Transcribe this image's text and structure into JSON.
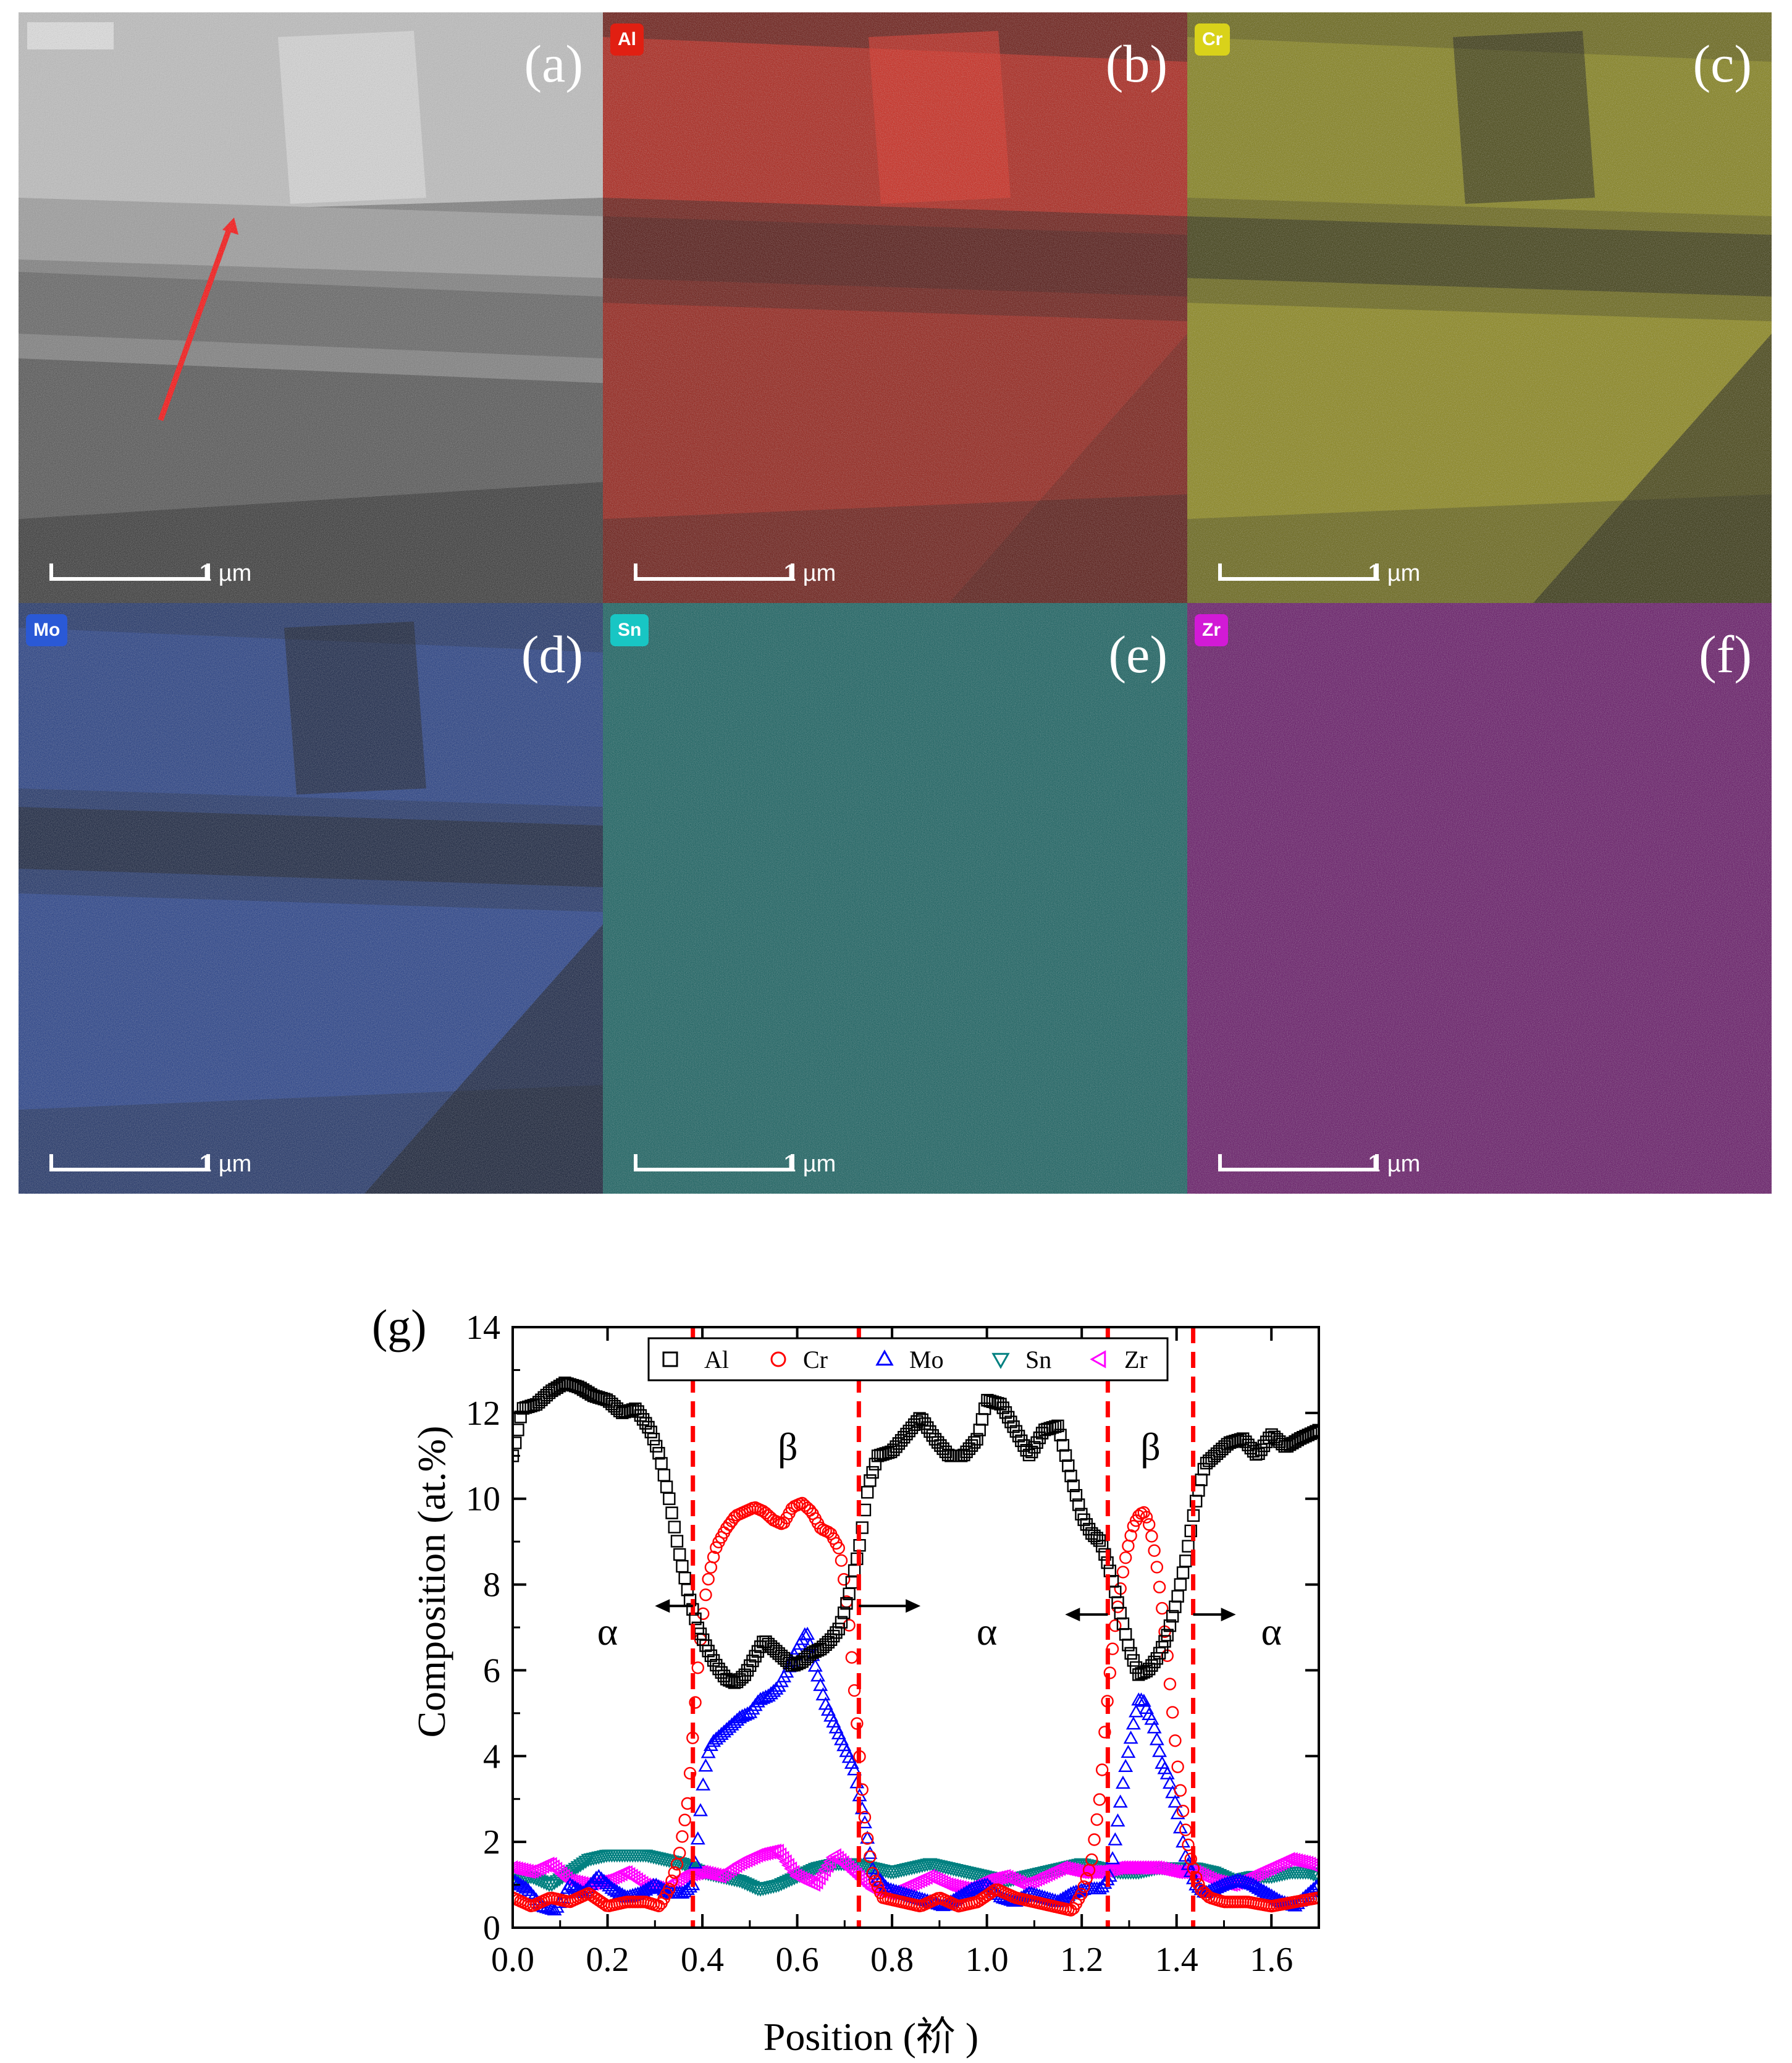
{
  "figure": {
    "panels": [
      {
        "id": "a",
        "label": "(a)",
        "element": "",
        "color": "#8a8a8a",
        "scale": "1 µm",
        "kind": "haadf"
      },
      {
        "id": "b",
        "label": "(b)",
        "element": "Al",
        "color": "#e11f12",
        "scale": "1 µm",
        "kind": "map"
      },
      {
        "id": "c",
        "label": "(c)",
        "element": "Cr",
        "color": "#d9d21a",
        "scale": "1 µm",
        "kind": "map"
      },
      {
        "id": "d",
        "label": "(d)",
        "element": "Mo",
        "color": "#2a59d6",
        "scale": "1 µm",
        "kind": "map"
      },
      {
        "id": "e",
        "label": "(e)",
        "element": "Sn",
        "color": "#18c6c4",
        "scale": "1 µm",
        "kind": "map"
      },
      {
        "id": "f",
        "label": "(f)",
        "element": "Zr",
        "color": "#d21ad6",
        "scale": "1 µm",
        "kind": "map"
      }
    ]
  },
  "chart_data": {
    "type": "line",
    "panel_label": "(g)",
    "xlabel": "Position (祄 )",
    "ylabel": "Composition (at.%)",
    "xlim": [
      0.0,
      1.7
    ],
    "ylim": [
      0,
      14
    ],
    "xticks": [
      "0.0",
      "0.2",
      "0.4",
      "0.6",
      "0.8",
      "1.0",
      "1.2",
      "1.4",
      "1.6"
    ],
    "yticks": [
      "0",
      "2",
      "4",
      "6",
      "8",
      "10",
      "12",
      "14"
    ],
    "legend_position": "top",
    "phase_boundaries_x": [
      0.38,
      0.73,
      1.255,
      1.435
    ],
    "phase_labels": [
      {
        "text": "α",
        "x": 0.2,
        "y": 6.6
      },
      {
        "text": "β",
        "x": 0.58,
        "y": 10.9
      },
      {
        "text": "α",
        "x": 1.0,
        "y": 6.6
      },
      {
        "text": "β",
        "x": 1.345,
        "y": 10.9
      },
      {
        "text": "α",
        "x": 1.6,
        "y": 6.6
      }
    ],
    "arrows": [
      {
        "x_from": 0.38,
        "x_to": 0.3,
        "y": 7.5
      },
      {
        "x_from": 0.73,
        "x_to": 0.86,
        "y": 7.5
      },
      {
        "x_from": 1.255,
        "x_to": 1.165,
        "y": 7.3
      },
      {
        "x_from": 1.435,
        "x_to": 1.525,
        "y": 7.3
      }
    ],
    "series": [
      {
        "name": "Al",
        "color": "#000000",
        "marker": "square",
        "x": [
          0.0,
          0.02,
          0.05,
          0.08,
          0.11,
          0.14,
          0.17,
          0.2,
          0.23,
          0.26,
          0.29,
          0.31,
          0.33,
          0.35,
          0.37,
          0.39,
          0.41,
          0.43,
          0.45,
          0.47,
          0.49,
          0.51,
          0.53,
          0.55,
          0.57,
          0.59,
          0.61,
          0.63,
          0.65,
          0.67,
          0.69,
          0.71,
          0.73,
          0.75,
          0.77,
          0.8,
          0.83,
          0.86,
          0.89,
          0.92,
          0.95,
          0.98,
          1.0,
          1.03,
          1.06,
          1.09,
          1.12,
          1.15,
          1.18,
          1.2,
          1.22,
          1.24,
          1.26,
          1.28,
          1.3,
          1.32,
          1.34,
          1.36,
          1.38,
          1.4,
          1.42,
          1.44,
          1.46,
          1.48,
          1.51,
          1.54,
          1.57,
          1.6,
          1.63,
          1.66,
          1.7
        ],
        "y": [
          11.0,
          12.1,
          12.2,
          12.5,
          12.7,
          12.6,
          12.4,
          12.3,
          12.0,
          12.1,
          11.6,
          11.0,
          10.0,
          8.8,
          7.8,
          7.0,
          6.5,
          6.1,
          5.8,
          5.7,
          5.9,
          6.3,
          6.7,
          6.5,
          6.3,
          6.1,
          6.2,
          6.4,
          6.5,
          6.7,
          7.0,
          7.8,
          8.8,
          10.3,
          11.0,
          11.1,
          11.5,
          11.9,
          11.4,
          11.0,
          11.0,
          11.4,
          12.3,
          12.2,
          11.6,
          11.0,
          11.6,
          11.7,
          10.4,
          9.6,
          9.2,
          9.0,
          8.3,
          7.4,
          6.5,
          5.9,
          6.0,
          6.3,
          6.8,
          7.6,
          8.6,
          9.9,
          10.8,
          11.0,
          11.3,
          11.4,
          11.0,
          11.5,
          11.2,
          11.4,
          11.6
        ]
      },
      {
        "name": "Cr",
        "color": "#ff0000",
        "marker": "circle",
        "x": [
          0.0,
          0.04,
          0.08,
          0.12,
          0.16,
          0.2,
          0.24,
          0.28,
          0.31,
          0.33,
          0.35,
          0.37,
          0.38,
          0.39,
          0.4,
          0.41,
          0.42,
          0.43,
          0.45,
          0.47,
          0.49,
          0.51,
          0.53,
          0.55,
          0.57,
          0.59,
          0.61,
          0.63,
          0.65,
          0.67,
          0.69,
          0.7,
          0.71,
          0.72,
          0.73,
          0.74,
          0.75,
          0.76,
          0.78,
          0.82,
          0.86,
          0.9,
          0.94,
          0.98,
          1.02,
          1.06,
          1.1,
          1.14,
          1.18,
          1.2,
          1.22,
          1.24,
          1.25,
          1.26,
          1.27,
          1.28,
          1.29,
          1.3,
          1.31,
          1.32,
          1.33,
          1.34,
          1.35,
          1.36,
          1.37,
          1.38,
          1.39,
          1.4,
          1.41,
          1.42,
          1.43,
          1.44,
          1.45,
          1.47,
          1.5,
          1.55,
          1.6,
          1.65,
          1.7
        ],
        "y": [
          0.7,
          0.5,
          0.7,
          0.6,
          0.8,
          0.5,
          0.6,
          0.6,
          0.5,
          0.9,
          1.6,
          3.0,
          4.5,
          6.0,
          7.2,
          8.0,
          8.5,
          8.9,
          9.3,
          9.6,
          9.7,
          9.8,
          9.7,
          9.5,
          9.4,
          9.8,
          9.9,
          9.7,
          9.3,
          9.2,
          8.8,
          8.0,
          7.0,
          5.6,
          4.2,
          2.8,
          1.9,
          1.2,
          0.7,
          0.6,
          0.5,
          0.7,
          0.5,
          0.6,
          0.9,
          0.7,
          0.6,
          0.5,
          0.4,
          0.8,
          1.5,
          3.2,
          4.8,
          6.0,
          7.0,
          7.8,
          8.5,
          9.0,
          9.4,
          9.6,
          9.7,
          9.5,
          9.0,
          8.3,
          7.4,
          6.4,
          5.2,
          4.0,
          3.0,
          2.2,
          1.6,
          1.2,
          0.9,
          0.7,
          0.6,
          0.6,
          0.5,
          0.6,
          0.7
        ]
      },
      {
        "name": "Mo",
        "color": "#0000ff",
        "marker": "triangle-up",
        "x": [
          0.0,
          0.03,
          0.06,
          0.09,
          0.12,
          0.15,
          0.18,
          0.21,
          0.24,
          0.27,
          0.3,
          0.33,
          0.36,
          0.38,
          0.39,
          0.4,
          0.41,
          0.42,
          0.44,
          0.46,
          0.48,
          0.5,
          0.52,
          0.54,
          0.56,
          0.58,
          0.6,
          0.62,
          0.64,
          0.66,
          0.68,
          0.7,
          0.72,
          0.74,
          0.76,
          0.79,
          0.82,
          0.85,
          0.88,
          0.91,
          0.94,
          0.97,
          1.0,
          1.03,
          1.06,
          1.09,
          1.12,
          1.15,
          1.18,
          1.21,
          1.24,
          1.26,
          1.27,
          1.28,
          1.29,
          1.3,
          1.31,
          1.32,
          1.33,
          1.34,
          1.35,
          1.36,
          1.37,
          1.38,
          1.4,
          1.42,
          1.44,
          1.46,
          1.48,
          1.5,
          1.53,
          1.56,
          1.59,
          1.62,
          1.65,
          1.68,
          1.7
        ],
        "y": [
          1.1,
          0.9,
          0.5,
          0.4,
          1.0,
          0.8,
          1.2,
          0.9,
          0.7,
          0.8,
          1.0,
          0.8,
          0.8,
          1.0,
          2.0,
          3.2,
          4.0,
          4.3,
          4.5,
          4.7,
          4.9,
          5.0,
          5.3,
          5.4,
          5.6,
          6.0,
          6.5,
          6.9,
          6.0,
          5.2,
          4.7,
          4.2,
          3.7,
          2.6,
          1.3,
          0.9,
          0.8,
          0.7,
          0.6,
          0.5,
          0.7,
          0.9,
          1.0,
          0.7,
          0.6,
          0.8,
          0.7,
          0.6,
          0.8,
          0.9,
          0.9,
          1.2,
          2.0,
          2.8,
          3.6,
          4.2,
          4.8,
          5.3,
          5.3,
          5.0,
          4.8,
          4.3,
          3.8,
          3.6,
          2.8,
          1.6,
          1.0,
          0.8,
          0.9,
          1.0,
          1.1,
          1.0,
          0.8,
          0.6,
          0.5,
          0.8,
          1.0
        ]
      },
      {
        "name": "Sn",
        "color": "#008080",
        "marker": "triangle-down",
        "x": [
          0.0,
          0.04,
          0.08,
          0.12,
          0.16,
          0.2,
          0.24,
          0.28,
          0.32,
          0.36,
          0.4,
          0.44,
          0.48,
          0.52,
          0.56,
          0.6,
          0.64,
          0.68,
          0.72,
          0.76,
          0.8,
          0.84,
          0.88,
          0.92,
          0.96,
          1.0,
          1.04,
          1.08,
          1.12,
          1.16,
          1.2,
          1.24,
          1.28,
          1.32,
          1.36,
          1.4,
          1.44,
          1.48,
          1.52,
          1.56,
          1.6,
          1.64,
          1.68,
          1.7
        ],
        "y": [
          1.1,
          1.2,
          1.0,
          1.3,
          1.6,
          1.7,
          1.7,
          1.7,
          1.6,
          1.5,
          1.3,
          1.2,
          1.1,
          0.9,
          1.0,
          1.2,
          1.4,
          1.5,
          1.5,
          1.4,
          1.3,
          1.4,
          1.5,
          1.4,
          1.3,
          1.2,
          1.1,
          1.2,
          1.3,
          1.4,
          1.5,
          1.4,
          1.3,
          1.3,
          1.4,
          1.4,
          1.4,
          1.3,
          1.1,
          1.2,
          1.2,
          1.3,
          1.3,
          1.2
        ]
      },
      {
        "name": "Zr",
        "color": "#ff00ff",
        "marker": "triangle-left",
        "x": [
          0.0,
          0.04,
          0.08,
          0.12,
          0.16,
          0.2,
          0.24,
          0.28,
          0.32,
          0.36,
          0.4,
          0.44,
          0.48,
          0.52,
          0.56,
          0.6,
          0.64,
          0.68,
          0.72,
          0.76,
          0.8,
          0.84,
          0.88,
          0.92,
          0.96,
          1.0,
          1.04,
          1.08,
          1.12,
          1.16,
          1.2,
          1.24,
          1.28,
          1.32,
          1.36,
          1.4,
          1.44,
          1.48,
          1.52,
          1.56,
          1.6,
          1.64,
          1.68,
          1.7
        ],
        "y": [
          1.4,
          1.3,
          1.5,
          1.1,
          1.0,
          1.1,
          1.3,
          1.0,
          0.9,
          1.2,
          1.3,
          1.2,
          1.5,
          1.7,
          1.8,
          1.2,
          1.0,
          1.7,
          1.3,
          0.9,
          0.8,
          1.0,
          1.2,
          1.0,
          0.9,
          1.1,
          1.2,
          1.0,
          1.2,
          1.4,
          1.3,
          1.3,
          1.4,
          1.4,
          1.4,
          1.3,
          1.3,
          1.1,
          1.0,
          1.2,
          1.4,
          1.6,
          1.5,
          1.4
        ]
      }
    ]
  }
}
